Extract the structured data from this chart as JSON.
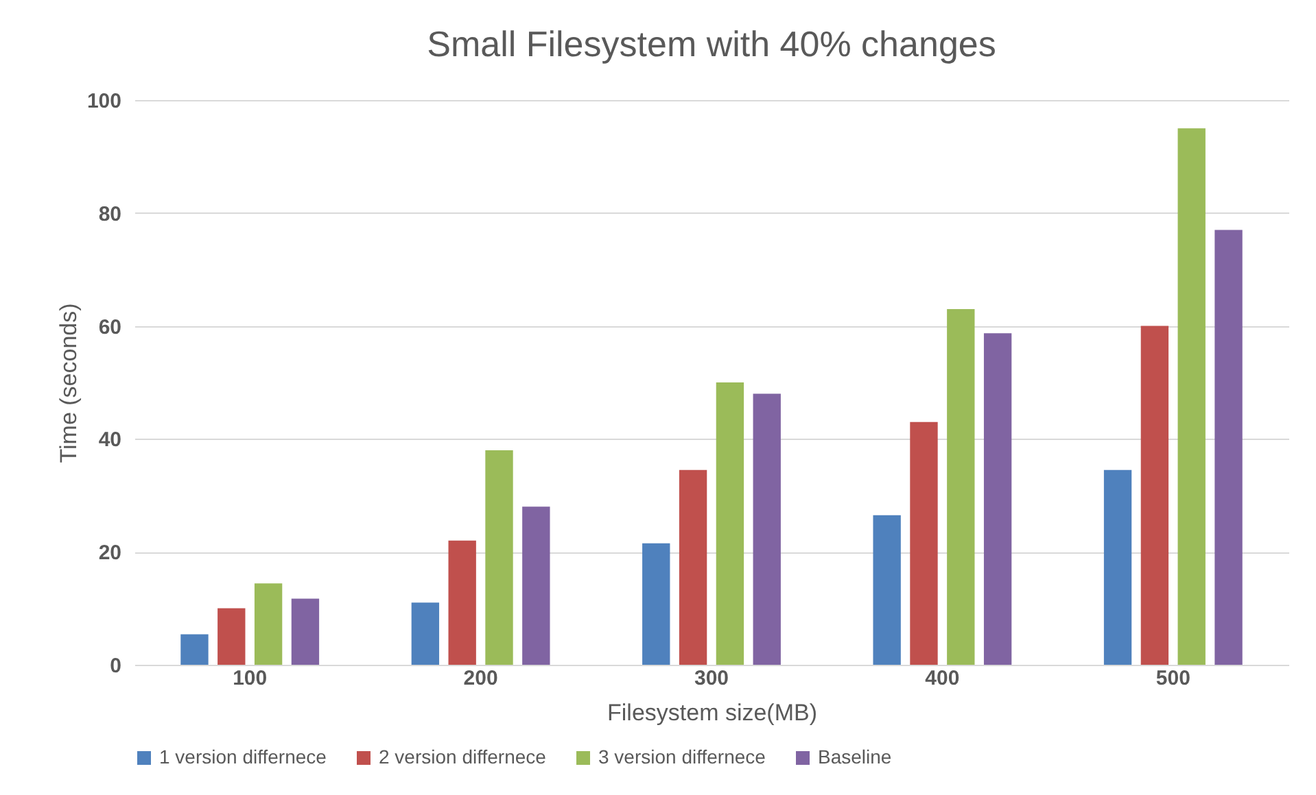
{
  "chart_data": {
    "type": "bar",
    "title": "Small Filesystem with 40% changes",
    "xlabel": "Filesystem size(MB)",
    "ylabel": "Time (seconds)",
    "categories": [
      "100",
      "200",
      "300",
      "400",
      "500"
    ],
    "series": [
      {
        "name": "1 version differnece",
        "color": "#4f81bd",
        "values": [
          5.4,
          11,
          21.5,
          26.5,
          34.5
        ]
      },
      {
        "name": "2 version differnece",
        "color": "#c0504d",
        "values": [
          10,
          22,
          34.5,
          43,
          60
        ]
      },
      {
        "name": "3 version differnece",
        "color": "#9bbb59",
        "values": [
          14.4,
          38,
          50,
          63,
          95
        ]
      },
      {
        "name": "Baseline",
        "color": "#8064a2",
        "values": [
          11.7,
          28,
          48,
          58.7,
          77
        ]
      }
    ],
    "ylim": [
      0,
      100
    ],
    "yticks": [
      0,
      20,
      40,
      60,
      80,
      100
    ],
    "grid": "y",
    "legend": "bottom"
  }
}
